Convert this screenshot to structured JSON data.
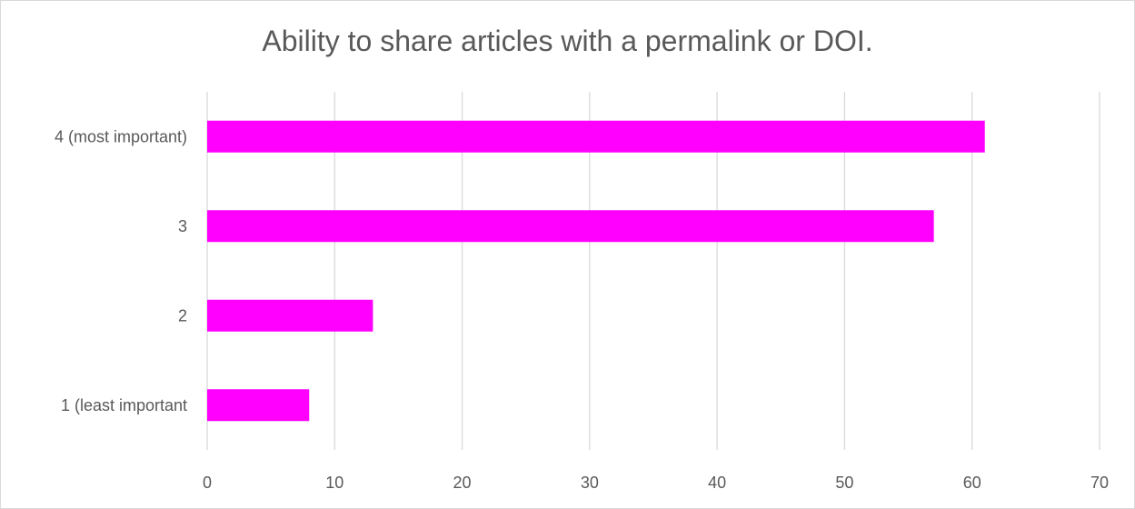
{
  "chart_data": {
    "type": "bar",
    "orientation": "horizontal",
    "title": "Ability to share articles with a permalink or DOI.",
    "categories": [
      "4 (most important)",
      "3",
      "2",
      "1 (least important"
    ],
    "values": [
      61,
      57,
      13,
      8
    ],
    "xlim": [
      0,
      70
    ],
    "x_ticks": [
      "0",
      "10",
      "20",
      "30",
      "40",
      "50",
      "60",
      "70"
    ],
    "xlabel": "",
    "ylabel": "",
    "grid": true,
    "legend": "none",
    "bar_color": "#ff00ff",
    "grid_color": "#d9d9d9",
    "text_color": "#595959"
  }
}
